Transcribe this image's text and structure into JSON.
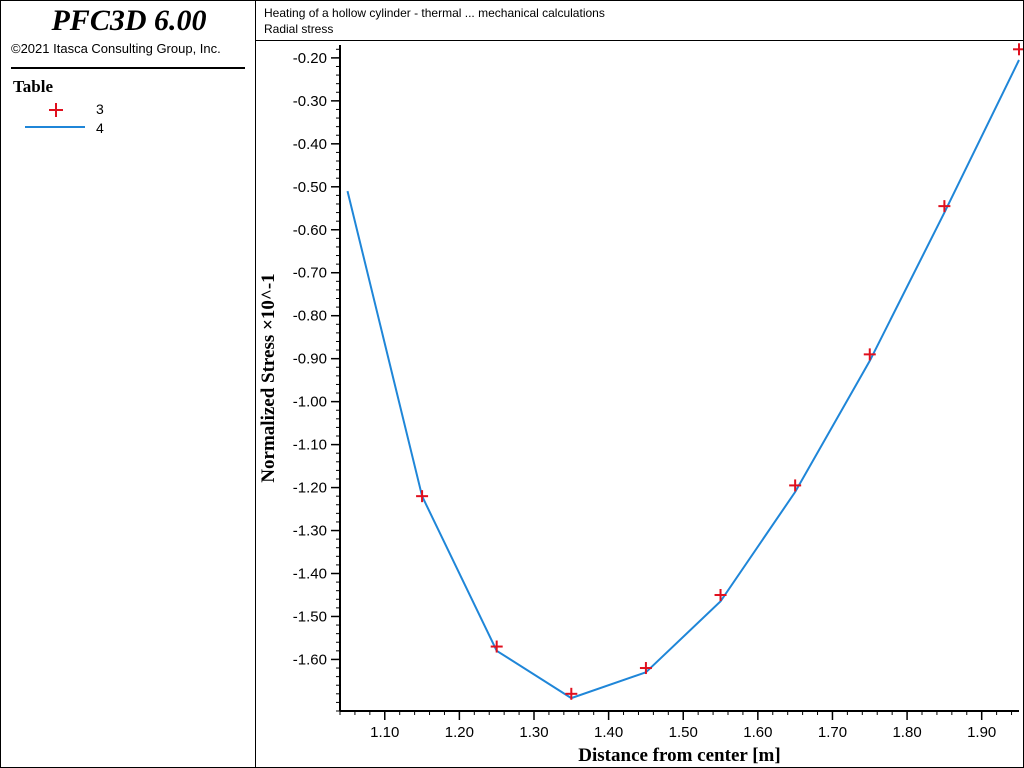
{
  "app": {
    "name": "PFC3D 6.00",
    "copyright": "©2021 Itasca Consulting Group, Inc."
  },
  "legend": {
    "title": "Table",
    "items": [
      {
        "label": "3",
        "kind": "marker",
        "color": "#e0101e"
      },
      {
        "label": "4",
        "kind": "line",
        "color": "#1f86d8"
      }
    ]
  },
  "header": {
    "title": "Heating of a hollow cylinder - thermal ... mechanical calculations",
    "subtitle": "Radial stress"
  },
  "chart_data": {
    "type": "line",
    "xlabel": "Distance from center [m]",
    "ylabel": "Normalized Stress ×10^-1",
    "xlim": [
      1.04,
      1.95
    ],
    "ylim": [
      -1.72,
      -0.17
    ],
    "xticks": [
      "1.10",
      "1.20",
      "1.30",
      "1.40",
      "1.50",
      "1.60",
      "1.70",
      "1.80",
      "1.90"
    ],
    "yticks": [
      "-0.20",
      "-0.30",
      "-0.40",
      "-0.50",
      "-0.60",
      "-0.70",
      "-0.80",
      "-0.90",
      "-1.00",
      "-1.10",
      "-1.20",
      "-1.30",
      "-1.40",
      "-1.50",
      "-1.60"
    ],
    "grid": false,
    "series": [
      {
        "name": "3",
        "style": "markers",
        "color": "#e0101e",
        "x": [
          1.15,
          1.25,
          1.35,
          1.45,
          1.55,
          1.65,
          1.75,
          1.85,
          1.95
        ],
        "y": [
          -1.22,
          -1.57,
          -1.68,
          -1.62,
          -1.45,
          -1.195,
          -0.89,
          -0.545,
          -0.18
        ]
      },
      {
        "name": "4",
        "style": "line",
        "color": "#1f86d8",
        "x": [
          1.05,
          1.15,
          1.25,
          1.35,
          1.45,
          1.55,
          1.65,
          1.75,
          1.85,
          1.95
        ],
        "y": [
          -0.51,
          -1.22,
          -1.58,
          -1.69,
          -1.63,
          -1.465,
          -1.21,
          -0.905,
          -0.56,
          -0.205
        ]
      }
    ]
  }
}
